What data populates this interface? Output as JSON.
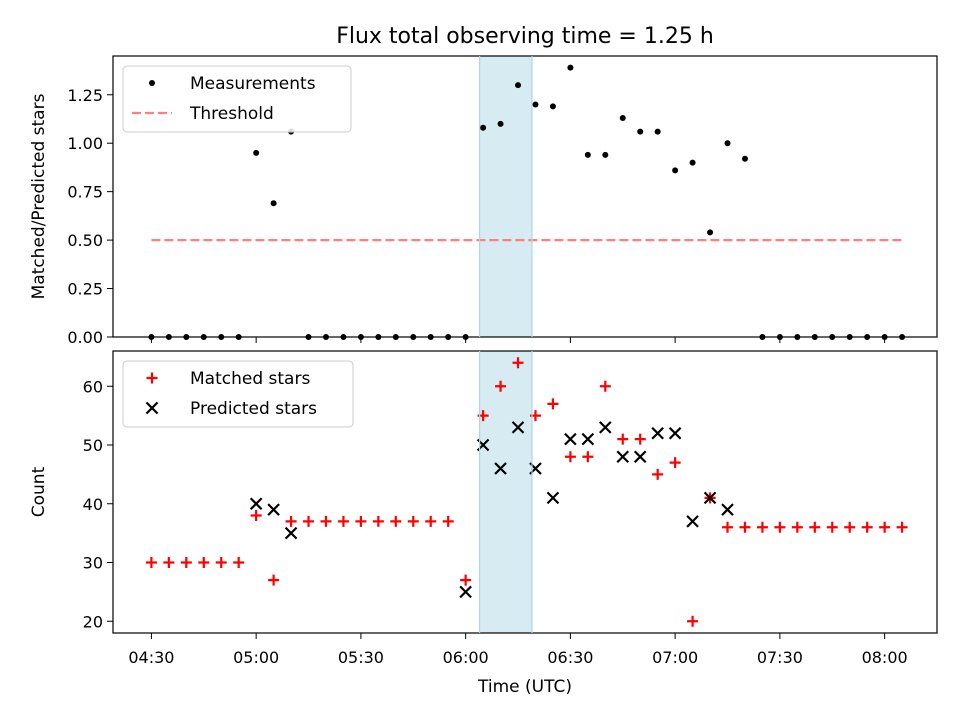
{
  "chart_data": [
    {
      "type": "scatter",
      "title": "Flux total observing time = 1.25 h",
      "xlabel": "",
      "ylabel": "Matched/Predicted stars",
      "ylim": [
        0,
        1.45
      ],
      "yticks": [
        "0.00",
        "0.25",
        "0.50",
        "0.75",
        "1.00",
        "1.25"
      ],
      "ytick_values": [
        0,
        0.25,
        0.5,
        0.75,
        1.0,
        1.25
      ],
      "shaded_region": [
        "06:04",
        "06:19"
      ],
      "shaded_color": "#add8e6",
      "legend_position": "upper-left",
      "series": [
        {
          "name": "Measurements",
          "marker": "dot",
          "color": "#000000",
          "x": [
            "04:30",
            "04:35",
            "04:40",
            "04:45",
            "04:50",
            "04:55",
            "05:00",
            "05:05",
            "05:10",
            "05:15",
            "05:20",
            "05:25",
            "05:30",
            "05:35",
            "05:40",
            "05:45",
            "05:50",
            "05:55",
            "06:00",
            "06:05",
            "06:10",
            "06:15",
            "06:20",
            "06:25",
            "06:30",
            "06:35",
            "06:40",
            "06:45",
            "06:50",
            "06:55",
            "07:00",
            "07:05",
            "07:10",
            "07:15",
            "07:20",
            "07:25",
            "07:30",
            "07:35",
            "07:40",
            "07:45",
            "07:50",
            "07:55",
            "08:00",
            "08:05"
          ],
          "y": [
            0,
            0,
            0,
            0,
            0,
            0,
            0.95,
            0.69,
            1.06,
            0,
            0,
            0,
            0,
            0,
            0,
            0,
            0,
            0,
            0,
            1.08,
            1.1,
            1.3,
            1.2,
            1.19,
            1.39,
            0.94,
            0.94,
            1.13,
            1.06,
            1.06,
            0.86,
            0.9,
            0.54,
            1.0,
            0.92,
            0,
            0,
            0,
            0,
            0,
            0,
            0,
            0,
            0
          ]
        },
        {
          "name": "Threshold",
          "marker": "dashed-line",
          "color": "#ff7f7f",
          "x": [
            "04:30",
            "08:05"
          ],
          "y": [
            0.5,
            0.5
          ]
        }
      ]
    },
    {
      "type": "scatter",
      "title": "",
      "xlabel": "Time (UTC)",
      "ylabel": "Count",
      "ylim": [
        18,
        66
      ],
      "yticks": [
        "20",
        "30",
        "40",
        "50",
        "60"
      ],
      "ytick_values": [
        20,
        30,
        40,
        50,
        60
      ],
      "xlim": [
        "04:19",
        "08:15"
      ],
      "xticks": [
        "04:30",
        "05:00",
        "05:30",
        "06:00",
        "06:30",
        "07:00",
        "07:30",
        "08:00"
      ],
      "shaded_region": [
        "06:04",
        "06:19"
      ],
      "shaded_color": "#add8e6",
      "legend_position": "upper-left",
      "series": [
        {
          "name": "Matched stars",
          "marker": "plus",
          "color": "#ff0000",
          "x": [
            "04:30",
            "04:35",
            "04:40",
            "04:45",
            "04:50",
            "04:55",
            "05:00",
            "05:05",
            "05:10",
            "05:15",
            "05:20",
            "05:25",
            "05:30",
            "05:35",
            "05:40",
            "05:45",
            "05:50",
            "05:55",
            "06:00",
            "06:05",
            "06:10",
            "06:15",
            "06:20",
            "06:25",
            "06:30",
            "06:35",
            "06:40",
            "06:45",
            "06:50",
            "06:55",
            "07:00",
            "07:05",
            "07:10",
            "07:15",
            "07:20",
            "07:25",
            "07:30",
            "07:35",
            "07:40",
            "07:45",
            "07:50",
            "07:55",
            "08:00",
            "08:05"
          ],
          "y": [
            30,
            30,
            30,
            30,
            30,
            30,
            38,
            27,
            37,
            37,
            37,
            37,
            37,
            37,
            37,
            37,
            37,
            37,
            27,
            55,
            60,
            64,
            55,
            57,
            48,
            48,
            60,
            51,
            51,
            45,
            47,
            20,
            41,
            36,
            36,
            36,
            36,
            36,
            36,
            36,
            36,
            36,
            36,
            36
          ]
        },
        {
          "name": "Predicted stars",
          "marker": "x",
          "color": "#000000",
          "x": [
            "05:00",
            "05:05",
            "05:10",
            "06:00",
            "06:05",
            "06:10",
            "06:15",
            "06:20",
            "06:25",
            "06:30",
            "06:35",
            "06:40",
            "06:45",
            "06:50",
            "06:55",
            "07:00",
            "07:05",
            "07:10",
            "07:15"
          ],
          "y": [
            40,
            39,
            35,
            25,
            50,
            46,
            53,
            46,
            41,
            51,
            51,
            53,
            48,
            48,
            52,
            52,
            37,
            41,
            39
          ]
        }
      ]
    }
  ]
}
